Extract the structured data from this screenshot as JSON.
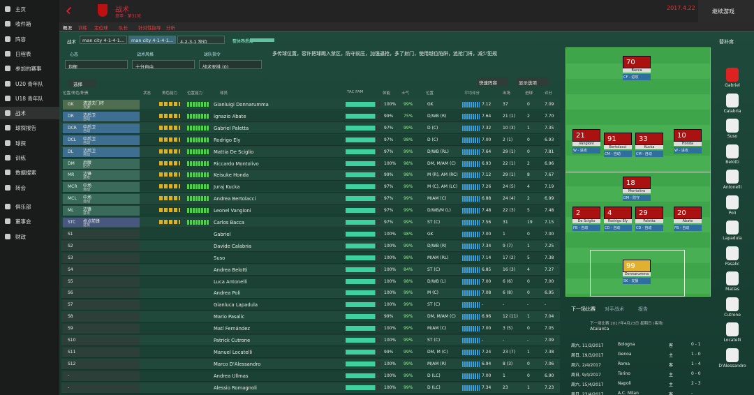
{
  "sidebar": [
    "主页",
    "收件箱",
    "阵容",
    "日程表",
    "参加的赛事",
    "U20 青年队",
    "U18 青年队",
    "战术",
    "球探报告",
    "球探",
    "训练",
    "数据搜索",
    "转会",
    "俱乐部",
    "董事会",
    "财政"
  ],
  "header": {
    "title": "战术",
    "subtitle": "意甲 · 第31轮",
    "date": "2017.4.22",
    "continue": "继续游戏"
  },
  "tabs": [
    "概况",
    "训练",
    "定位球",
    "队长",
    "针对性指导",
    "分析"
  ],
  "tactics": {
    "label": "战术",
    "slots": [
      "man city 4-1-4-1...",
      "man city 4-1-4-1...",
      "4-2-3-1 窄边"
    ],
    "fluency": "整体熟悉度"
  },
  "settings": [
    {
      "label": "心态",
      "value": "均衡"
    },
    {
      "label": "战术风格",
      "value": "十分自由"
    },
    {
      "label": "球队指令",
      "value": "战术安排 (0)"
    }
  ],
  "instructions": "多传球位置，容许把球踢入禁区，防守前压，加强逼抢，多了射门，使用越位陷阱，追抢门将，减少犯规",
  "toolbar": {
    "select": "选择",
    "quick": "快速阵容",
    "view": "显示选项"
  },
  "table": {
    "columns": [
      "位置/角色/职责",
      "状态",
      "角色能力",
      "位置能力",
      "球员",
      "TAC FAM",
      "体能",
      "士气",
      "位置",
      "平均评分",
      "出场",
      "进球",
      "评分"
    ],
    "rows": [
      [
        "GK",
        "清道夫门将",
        "支援",
        "Gianluigi Donnarumma",
        "100%",
        "99%",
        "GK",
        "7.12",
        "37",
        "0",
        "7.09"
      ],
      [
        "DR",
        "边后卫",
        "自动",
        "Ignazio Abate",
        "99%",
        "75%",
        "D/WB (R)",
        "7.64",
        "21 (1)",
        "2",
        "7.70"
      ],
      [
        "DCR",
        "中后卫",
        "自动",
        "Gabriel Paletta",
        "97%",
        "99%",
        "D (C)",
        "7.32",
        "10 (3)",
        "1",
        "7.35"
      ],
      [
        "DCL",
        "中后卫",
        "自动",
        "Rodrigo Ely",
        "97%",
        "98%",
        "D (C)",
        "7.00",
        "2 (1)",
        "0",
        "6.93"
      ],
      [
        "DL",
        "边后卫",
        "自动",
        "Mattia De Sciglio",
        "97%",
        "99%",
        "D/WB (RL)",
        "7.64",
        "29 (1)",
        "0",
        "7.81"
      ],
      [
        "DM",
        "后腰",
        "防守",
        "Riccardo Montolivo",
        "100%",
        "98%",
        "DM, M/AM (C)",
        "6.93",
        "22 (1)",
        "2",
        "6.96"
      ],
      [
        "MR",
        "边锋",
        "进攻",
        "Keisuke Honda",
        "99%",
        "98%",
        "M (R), AM (RC)",
        "7.12",
        "29 (1)",
        "8",
        "7.67"
      ],
      [
        "MCR",
        "中场",
        "自动",
        "Juraj Kucka",
        "97%",
        "99%",
        "M (C), AM (LC)",
        "7.26",
        "24 (5)",
        "4",
        "7.19"
      ],
      [
        "MCL",
        "中场",
        "自动",
        "Andrea Bertolacci",
        "97%",
        "99%",
        "M/AM (C)",
        "6.88",
        "24 (4)",
        "2",
        "6.99"
      ],
      [
        "ML",
        "边锋",
        "进攻",
        "Leonel Vangioni",
        "97%",
        "99%",
        "D/WB/M (L)",
        "7.48",
        "22 (3)",
        "5",
        "7.48"
      ],
      [
        "STC",
        "抢点前锋",
        "进攻",
        "Carlos Bacca",
        "97%",
        "99%",
        "ST (C)",
        "7.56",
        "31",
        "19",
        "7.15"
      ],
      [
        "S1",
        "",
        "",
        "Gabriel",
        "100%",
        "98%",
        "GK",
        "7.00",
        "1",
        "0",
        "7.00"
      ],
      [
        "S2",
        "",
        "",
        "Davide Calabria",
        "100%",
        "99%",
        "D/WB (R)",
        "7.34",
        "9 (7)",
        "1",
        "7.25"
      ],
      [
        "S3",
        "",
        "",
        "Suso",
        "100%",
        "98%",
        "M/AM (RL)",
        "7.14",
        "17 (2)",
        "5",
        "7.38"
      ],
      [
        "S4",
        "",
        "",
        "Andrea Belotti",
        "100%",
        "84%",
        "ST (C)",
        "6.85",
        "16 (3)",
        "4",
        "7.27"
      ],
      [
        "S5",
        "",
        "",
        "Luca Antonelli",
        "100%",
        "98%",
        "D/WB (L)",
        "7.00",
        "6 (6)",
        "0",
        "7.00"
      ],
      [
        "S6",
        "",
        "",
        "Andrea Poli",
        "100%",
        "99%",
        "M (C)",
        "7.08",
        "6 (8)",
        "0",
        "6.95"
      ],
      [
        "S7",
        "",
        "",
        "Gianluca Lapadula",
        "100%",
        "99%",
        "ST (C)",
        "-",
        "-",
        "-",
        "-"
      ],
      [
        "S8",
        "",
        "",
        "Mario Pasalic",
        "99%",
        "99%",
        "DM, M/AM (C)",
        "6.96",
        "12 (11)",
        "1",
        "7.04"
      ],
      [
        "S9",
        "",
        "",
        "Matí Fernández",
        "100%",
        "99%",
        "M/AM (C)",
        "7.00",
        "3 (5)",
        "0",
        "7.05"
      ],
      [
        "S10",
        "",
        "",
        "Patrick Cutrone",
        "100%",
        "99%",
        "ST (C)",
        "-",
        "-",
        "-",
        "7.09"
      ],
      [
        "S11",
        "",
        "",
        "Manuel Locatelli",
        "99%",
        "99%",
        "DM, M (C)",
        "7.24",
        "23 (7)",
        "1",
        "7.38"
      ],
      [
        "S12",
        "",
        "",
        "Marco D'Alessandro",
        "100%",
        "99%",
        "M/AM (R)",
        "6.94",
        "8 (3)",
        "0",
        "7.06"
      ],
      [
        "-",
        "",
        "",
        "Andrea Ullmas",
        "100%",
        "99%",
        "D (LC)",
        "7.00",
        "1",
        "0",
        "6.90"
      ],
      [
        "-",
        "",
        "",
        "Alessio Romagnoli",
        "100%",
        "99%",
        "D (LC)",
        "7.34",
        "23",
        "1",
        "7.23"
      ]
    ]
  },
  "pitch": [
    {
      "no": "70",
      "name": "Bacca",
      "role": "CF - 进攻"
    },
    {
      "no": "21",
      "name": "Vangioni",
      "role": "W - 进攻"
    },
    {
      "no": "91",
      "name": "Bertolacci",
      "role": "CM - 自动"
    },
    {
      "no": "33",
      "name": "Kucka",
      "role": "CM - 自动"
    },
    {
      "no": "10",
      "name": "Honda",
      "role": "W - 进攻"
    },
    {
      "no": "18",
      "name": "Montolivo",
      "role": "DM - 防守"
    },
    {
      "no": "2",
      "name": "De Sciglio",
      "role": "FB - 自动"
    },
    {
      "no": "4",
      "name": "Rodrigo Ely",
      "role": "CD - 自动"
    },
    {
      "no": "29",
      "name": "Paletta",
      "role": "CD - 自动"
    },
    {
      "no": "20",
      "name": "Abate",
      "role": "FB - 自动"
    },
    {
      "no": "99",
      "name": "Donnarumma",
      "role": "SK - 支援"
    }
  ],
  "subs_title": "替补席",
  "subs": [
    "Gabriel",
    "Calabria",
    "Suso",
    "Belotti",
    "Antonelli",
    "Poli",
    "Lapadula",
    "Pasalic",
    "Matías",
    "Cutrone",
    "Locatelli",
    "D'Alessandro"
  ],
  "next": {
    "tabs": [
      "下一场比赛",
      "对手战术",
      "报告"
    ],
    "info": "下一场比赛 2017年4月23日 星期日 (客场)",
    "opponent": "Atalanta",
    "fixtures": [
      [
        "周六, 11/3/2017",
        "Bologna",
        "客",
        "0 - 1"
      ],
      [
        "周日, 19/3/2017",
        "Genoa",
        "主",
        "1 - 0"
      ],
      [
        "周六, 2/4/2017",
        "Roma",
        "客",
        "1 - 4"
      ],
      [
        "周日, 9/4/2017",
        "Torino",
        "主",
        "0 - 0"
      ],
      [
        "周六, 15/4/2017",
        "Napoli",
        "主",
        "2 - 3"
      ],
      [
        "周日, 23/4/2017",
        "A.C. Milan",
        "客",
        "-"
      ]
    ]
  }
}
